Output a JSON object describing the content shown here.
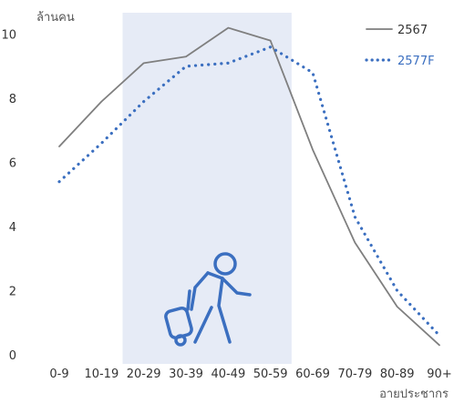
{
  "chart_data": {
    "type": "line",
    "categories": [
      "0-9",
      "10-19",
      "20-29",
      "30-39",
      "40-49",
      "50-59",
      "60-69",
      "70-79",
      "80-89",
      "90+"
    ],
    "series": [
      {
        "name": "2567",
        "values": [
          6.5,
          7.9,
          9.1,
          9.3,
          10.2,
          9.8,
          6.4,
          3.5,
          1.5,
          0.3
        ],
        "color": "#7f7f7f",
        "style": "solid"
      },
      {
        "name": "2577F",
        "values": [
          5.4,
          6.6,
          7.9,
          9.0,
          9.1,
          9.6,
          8.8,
          4.3,
          2.0,
          0.6
        ],
        "color": "#3b6fc0",
        "style": "dotted"
      }
    ],
    "ylim": [
      0,
      10.5
    ],
    "yticks": [
      "0",
      "2",
      "4",
      "6",
      "8",
      "10"
    ],
    "ylabel": "ล้านคน",
    "xlabel": "อายประชากร",
    "legend_position": "top-right",
    "highlight_range": [
      "20-29",
      "50-59"
    ],
    "highlight_color": "#e6ebf6",
    "icon": "traveler-with-luggage-icon",
    "icon_color": "#3b6fc0",
    "grid": false
  }
}
